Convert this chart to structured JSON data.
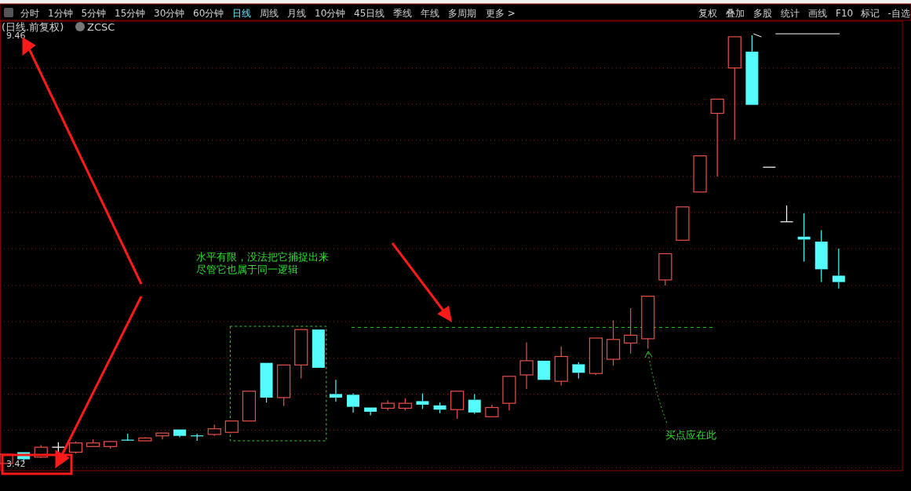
{
  "chart_data": {
    "type": "candlestick",
    "title": "(日线.前复权)",
    "subtitle": "ZCSC",
    "categories": [
      null,
      null,
      null,
      null,
      null,
      null,
      null,
      null,
      null,
      null,
      null,
      null,
      null,
      null,
      null,
      null,
      null,
      null,
      null,
      null,
      null,
      null,
      null,
      null,
      null,
      null,
      null,
      null,
      null,
      null,
      null,
      null,
      null,
      null,
      null,
      null,
      null,
      null,
      null,
      null,
      null,
      null,
      null,
      null,
      null,
      null,
      null,
      null,
      null
    ],
    "ohlc": [
      [
        3.42,
        3.55,
        3.42,
        3.55
      ],
      [
        3.58,
        3.58,
        3.44,
        3.48
      ],
      [
        3.51,
        3.68,
        3.5,
        3.65
      ],
      [
        3.65,
        3.72,
        3.58,
        3.65
      ],
      [
        3.58,
        3.73,
        3.56,
        3.71
      ],
      [
        3.66,
        3.76,
        3.66,
        3.71
      ],
      [
        3.66,
        3.74,
        3.63,
        3.73
      ],
      [
        3.75,
        3.84,
        3.74,
        3.75
      ],
      [
        3.74,
        3.79,
        3.74,
        3.78
      ],
      [
        3.81,
        3.85,
        3.76,
        3.85
      ],
      [
        3.9,
        3.9,
        3.79,
        3.81
      ],
      [
        3.81,
        3.84,
        3.74,
        3.81
      ],
      [
        3.83,
        3.97,
        3.81,
        3.91
      ],
      [
        3.86,
        4.02,
        3.86,
        4.02
      ],
      [
        4.02,
        4.44,
        4.02,
        4.44
      ],
      [
        4.84,
        4.84,
        4.28,
        4.35
      ],
      [
        4.35,
        4.81,
        4.23,
        4.81
      ],
      [
        4.81,
        5.31,
        4.62,
        5.31
      ],
      [
        5.31,
        5.31,
        4.77,
        4.77
      ],
      [
        4.4,
        4.6,
        4.29,
        4.35
      ],
      [
        4.39,
        4.41,
        4.14,
        4.22
      ],
      [
        4.21,
        4.21,
        4.1,
        4.15
      ],
      [
        4.2,
        4.31,
        4.17,
        4.27
      ],
      [
        4.2,
        4.34,
        4.17,
        4.27
      ],
      [
        4.3,
        4.41,
        4.19,
        4.25
      ],
      [
        4.24,
        4.28,
        4.13,
        4.18
      ],
      [
        4.18,
        4.44,
        4.05,
        4.44
      ],
      [
        4.32,
        4.4,
        4.12,
        4.14
      ],
      [
        4.08,
        4.25,
        4.08,
        4.21
      ],
      [
        4.27,
        4.65,
        4.17,
        4.65
      ],
      [
        4.67,
        5.13,
        4.47,
        4.87
      ],
      [
        4.87,
        4.87,
        4.6,
        4.6
      ],
      [
        4.58,
        5.07,
        4.52,
        4.93
      ],
      [
        4.82,
        4.85,
        4.62,
        4.7
      ],
      [
        4.69,
        5.19,
        4.67,
        5.19
      ],
      [
        4.89,
        5.44,
        4.8,
        5.17
      ],
      [
        5.12,
        5.61,
        4.97,
        5.23
      ],
      [
        5.18,
        5.78,
        5.04,
        5.78
      ],
      [
        6.01,
        6.38,
        5.93,
        6.38
      ],
      [
        6.57,
        7.04,
        6.57,
        7.04
      ],
      [
        7.25,
        7.76,
        7.25,
        7.76
      ],
      [
        8.36,
        8.56,
        7.47,
        8.56
      ],
      [
        9.0,
        9.44,
        7.99,
        9.44
      ],
      [
        9.23,
        9.46,
        8.48,
        8.48
      ],
      [
        7.6,
        7.6,
        7.6,
        7.6
      ],
      [
        6.83,
        7.06,
        6.83,
        6.83
      ],
      [
        6.62,
        6.95,
        6.27,
        6.58
      ],
      [
        6.55,
        6.71,
        5.98,
        6.16
      ],
      [
        6.07,
        6.45,
        5.89,
        5.98
      ]
    ],
    "ylim": [
      3.32,
      9.66
    ],
    "yticks": [
      {
        "value": 3.42,
        "label": "3.42"
      },
      {
        "value": 9.46,
        "label": "9.46"
      },
      {
        "value": 3.36,
        "label": null
      },
      {
        "value": 3.89,
        "label": null
      },
      {
        "value": 4.4,
        "label": null
      },
      {
        "value": 4.91,
        "label": null
      },
      {
        "value": 5.42,
        "label": null
      },
      {
        "value": 5.93,
        "label": null
      },
      {
        "value": 6.45,
        "label": null
      },
      {
        "value": 6.96,
        "label": null
      },
      {
        "value": 7.47,
        "label": null
      },
      {
        "value": 7.98,
        "label": null
      },
      {
        "value": 8.49,
        "label": null
      },
      {
        "value": 9.0,
        "label": null
      }
    ],
    "grid": "y",
    "tick_labels": "y",
    "ref_lines": [
      {
        "axis": "y",
        "value": 5.34,
        "color": "#33cc33",
        "line_style": "dashed"
      }
    ],
    "annotations": [
      "水平有限，没法把它捕捉出来",
      "尽管它也属于同一逻辑",
      "买点应在此",
      "分时",
      "1分钟",
      "5分钟",
      "15分钟",
      "30分钟",
      "60分钟",
      "日线",
      "周线",
      "月线",
      "10分钟",
      "45日线",
      "季线",
      "年线",
      "多周期",
      "更多 >",
      "复权",
      "叠加",
      "多股",
      "统计",
      "画线",
      "F10",
      "标记",
      "-自选"
    ]
  }
}
